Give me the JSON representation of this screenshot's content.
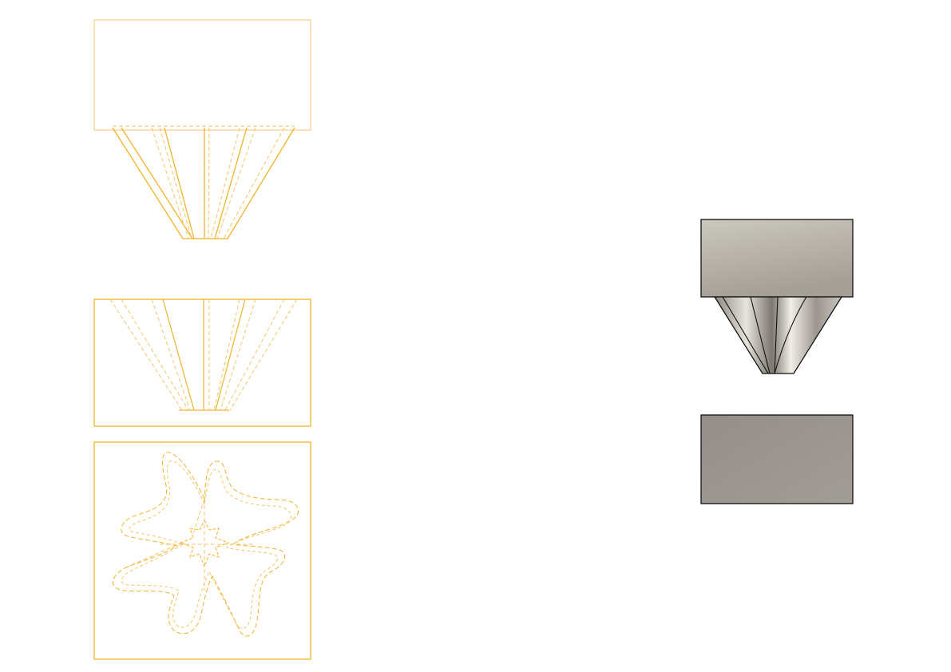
{
  "sheet": {
    "background": "#ffffff"
  },
  "colors": {
    "wireframe": "#f0b429",
    "wireframe_hidden": "#f5c66a",
    "render_outline": "#111111",
    "render_block_light": "#c6c2b8",
    "render_block_dark": "#9c958f",
    "render_base": "#9a948e"
  },
  "views": [
    {
      "name": "front-view",
      "style": "wireframe"
    },
    {
      "name": "section-view",
      "style": "wireframe-hidden"
    },
    {
      "name": "top-view",
      "style": "wireframe-profile"
    },
    {
      "name": "shaded-front-view",
      "style": "rendered"
    },
    {
      "name": "shaded-base-view",
      "style": "rendered"
    }
  ]
}
